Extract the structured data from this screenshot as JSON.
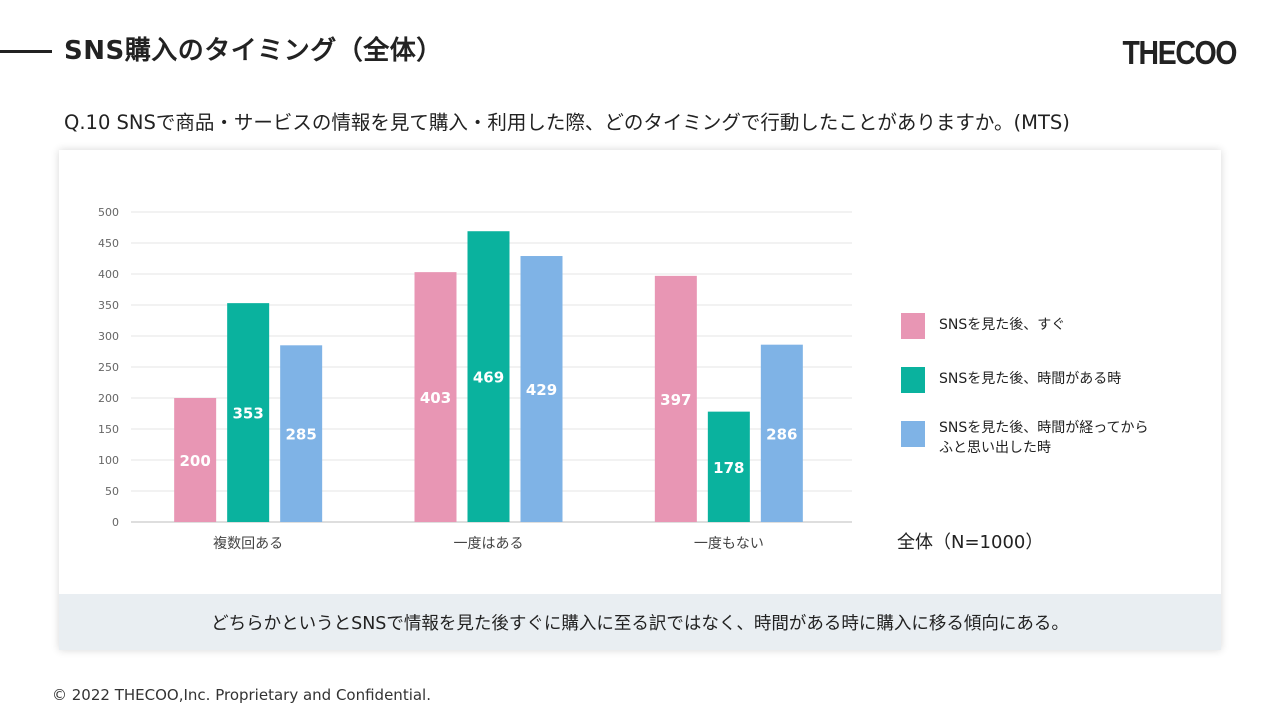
{
  "header": {
    "title": "SNS購入のタイミング（全体）",
    "logo_text": "THECOO"
  },
  "question": "Q.10 SNSで商品・サービスの情報を見て購入・利用した際、どのタイミングで行動したことがありますか。(MTS)",
  "chart_data": {
    "type": "bar",
    "categories": [
      "複数回ある",
      "一度はある",
      "一度もない"
    ],
    "series": [
      {
        "name": "SNSを見た後、すぐ",
        "values": [
          200,
          403,
          397
        ],
        "color": "#e896b4",
        "data_labels": [
          "200",
          "403",
          "397"
        ]
      },
      {
        "name": "SNSを見た後、時間がある時",
        "values": [
          353,
          469,
          178
        ],
        "color": "#0ab29e",
        "data_labels": [
          "353",
          "469",
          "178"
        ]
      },
      {
        "name": "SNSを見た後、時間が経ってからふと思い出した時",
        "values": [
          285,
          429,
          286
        ],
        "color": "#7fb3e6",
        "data_labels": [
          "285",
          "429",
          "286"
        ]
      }
    ],
    "ylim": [
      0,
      500
    ],
    "yticks": [
      0,
      50,
      100,
      150,
      200,
      250,
      300,
      350,
      400,
      450,
      500
    ],
    "ytick_labels": [
      "0",
      "50",
      "100",
      "150",
      "200",
      "250",
      "300",
      "350",
      "400",
      "450",
      "500"
    ],
    "grid": true,
    "legend_position": "right",
    "legend_labels": [
      [
        "SNSを見た後、すぐ"
      ],
      [
        "SNSを見た後、時間がある時"
      ],
      [
        "SNSを見た後、時間が経ってから",
        "ふと思い出した時"
      ]
    ],
    "sample_note": "全体（N=1000）"
  },
  "summary": "どちらかというとSNSで情報を見た後すぐに購入に至る訳ではなく、時間がある時に購入に移る傾向にある。",
  "footer": {
    "copyright": "© 2022 THECOO,Inc. Proprietary and Confidential."
  }
}
